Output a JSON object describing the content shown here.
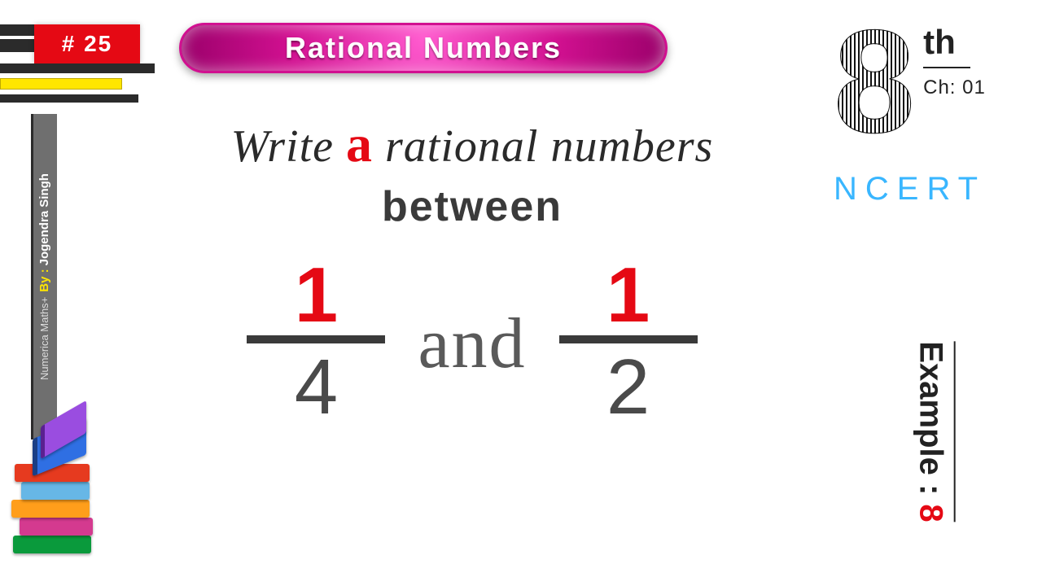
{
  "badge": {
    "label": "# 25",
    "bg": "#e50914",
    "fg": "#ffffff"
  },
  "bars": {
    "dark": "#2b2b2b",
    "yellow": "#ffe600"
  },
  "sidebar": {
    "brand_small": "Numerica Maths+",
    "byline_label": "By :",
    "byline_name": "Jogendra Singh",
    "band_color": "#6f6f6f"
  },
  "books": {
    "colors": [
      "#0a9a3c",
      "#d43a8f",
      "#ff9e1b",
      "#67b7e6",
      "#e63a1f",
      "#2f6fe3",
      "#9a4de0"
    ]
  },
  "pill": {
    "text": "Rational  Numbers",
    "gradient_from": "#ff5bcf",
    "gradient_mid": "#d11090",
    "gradient_to": "#9a006a",
    "text_color": "#ffffff"
  },
  "right": {
    "grade_number": "8",
    "grade_suffix": "th",
    "chapter_label": "Ch: 01",
    "ncert": "NCERT",
    "ncert_color": "#39b6ff",
    "example_label": "Example :",
    "example_number": "8"
  },
  "question": {
    "line1_pre": "Write ",
    "line1_highlight": "a",
    "line1_post": " rational numbers",
    "line2": "between",
    "fraction1": {
      "num": "1",
      "den": "4"
    },
    "connector": "and",
    "fraction2": {
      "num": "1",
      "den": "2"
    },
    "highlight_color": "#e50914",
    "text_color": "#2a2a2a",
    "bar_color": "#3a3a3a"
  }
}
